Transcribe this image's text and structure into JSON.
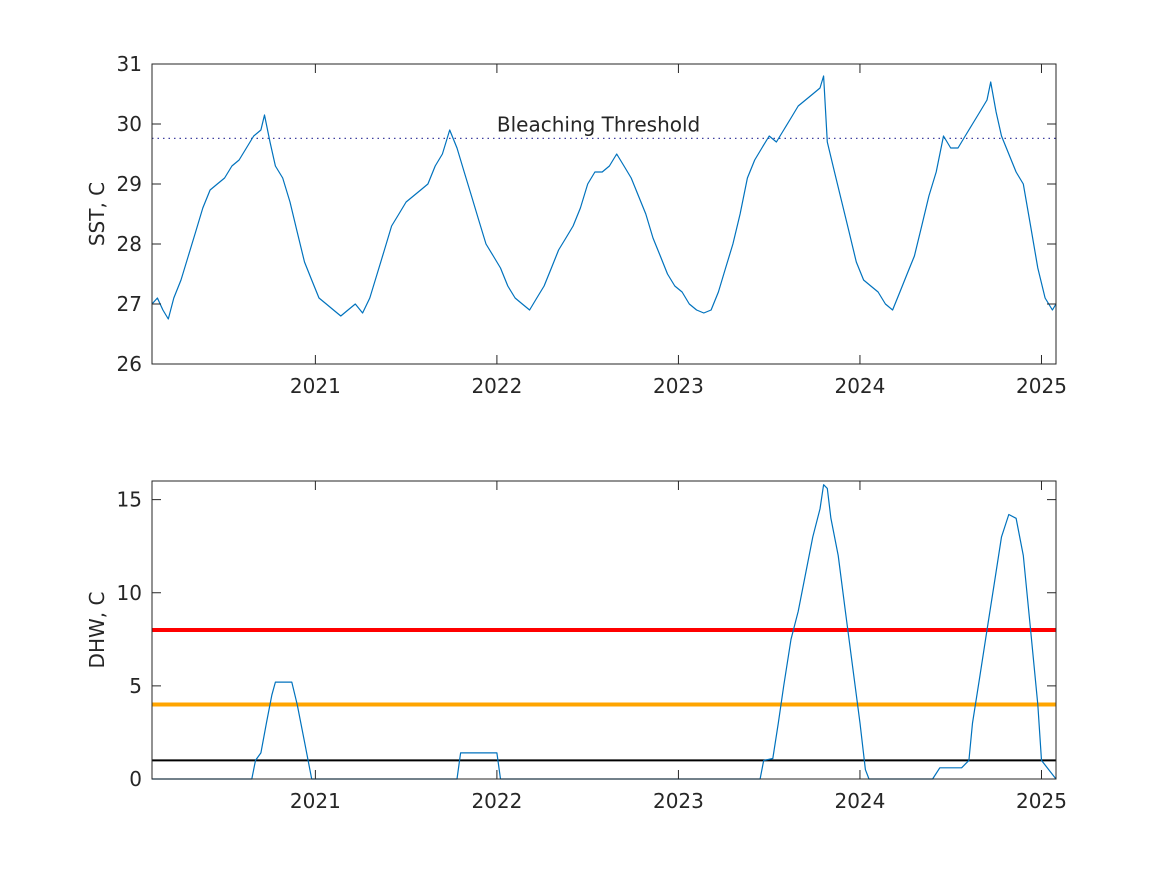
{
  "chart_data": [
    {
      "type": "line",
      "title": "",
      "xlabel": "",
      "ylabel": "SST, C",
      "xlim": [
        2020.1,
        2025.08
      ],
      "ylim": [
        26,
        31
      ],
      "xticks": [
        2021,
        2022,
        2023,
        2024,
        2025
      ],
      "xtick_labels": [
        "2021",
        "2022",
        "2023",
        "2024",
        "2025"
      ],
      "yticks": [
        26,
        27,
        28,
        29,
        30,
        31
      ],
      "ytick_labels": [
        "26",
        "27",
        "28",
        "29",
        "30",
        "31"
      ],
      "grid": false,
      "threshold": {
        "value": 29.76,
        "label": "Bleaching Threshold",
        "label_x": 2022.0,
        "color": "#4040a0",
        "style": "dotted"
      },
      "series": [
        {
          "color": "#0072bd",
          "x": [
            2020.1,
            2020.13,
            2020.16,
            2020.19,
            2020.22,
            2020.26,
            2020.3,
            2020.34,
            2020.38,
            2020.42,
            2020.46,
            2020.5,
            2020.54,
            2020.58,
            2020.62,
            2020.66,
            2020.7,
            2020.72,
            2020.75,
            2020.78,
            2020.82,
            2020.86,
            2020.9,
            2020.94,
            2020.98,
            2021.02,
            2021.06,
            2021.1,
            2021.14,
            2021.18,
            2021.22,
            2021.26,
            2021.3,
            2021.34,
            2021.38,
            2021.42,
            2021.46,
            2021.5,
            2021.54,
            2021.58,
            2021.62,
            2021.66,
            2021.7,
            2021.74,
            2021.78,
            2021.82,
            2021.86,
            2021.9,
            2021.94,
            2021.98,
            2022.02,
            2022.06,
            2022.1,
            2022.14,
            2022.18,
            2022.22,
            2022.26,
            2022.3,
            2022.34,
            2022.38,
            2022.42,
            2022.46,
            2022.5,
            2022.54,
            2022.58,
            2022.62,
            2022.66,
            2022.7,
            2022.74,
            2022.78,
            2022.82,
            2022.86,
            2022.9,
            2022.94,
            2022.98,
            2023.02,
            2023.06,
            2023.1,
            2023.14,
            2023.18,
            2023.22,
            2023.26,
            2023.3,
            2023.34,
            2023.38,
            2023.42,
            2023.46,
            2023.5,
            2023.54,
            2023.58,
            2023.62,
            2023.66,
            2023.7,
            2023.74,
            2023.78,
            2023.8,
            2023.82,
            2023.86,
            2023.9,
            2023.94,
            2023.98,
            2024.02,
            2024.06,
            2024.1,
            2024.14,
            2024.18,
            2024.22,
            2024.26,
            2024.3,
            2024.34,
            2024.38,
            2024.42,
            2024.46,
            2024.5,
            2024.54,
            2024.58,
            2024.62,
            2024.66,
            2024.7,
            2024.72,
            2024.75,
            2024.78,
            2024.82,
            2024.86,
            2024.9,
            2024.94,
            2024.98,
            2025.02,
            2025.06,
            2025.08
          ],
          "y": [
            27.0,
            27.1,
            26.9,
            26.75,
            27.1,
            27.4,
            27.8,
            28.2,
            28.6,
            28.9,
            29.0,
            29.1,
            29.3,
            29.4,
            29.6,
            29.8,
            29.9,
            30.15,
            29.7,
            29.3,
            29.1,
            28.7,
            28.2,
            27.7,
            27.4,
            27.1,
            27.0,
            26.9,
            26.8,
            26.9,
            27.0,
            26.85,
            27.1,
            27.5,
            27.9,
            28.3,
            28.5,
            28.7,
            28.8,
            28.9,
            29.0,
            29.3,
            29.5,
            29.9,
            29.6,
            29.2,
            28.8,
            28.4,
            28.0,
            27.8,
            27.6,
            27.3,
            27.1,
            27.0,
            26.9,
            27.1,
            27.3,
            27.6,
            27.9,
            28.1,
            28.3,
            28.6,
            29.0,
            29.2,
            29.2,
            29.3,
            29.5,
            29.3,
            29.1,
            28.8,
            28.5,
            28.1,
            27.8,
            27.5,
            27.3,
            27.2,
            27.0,
            26.9,
            26.85,
            26.9,
            27.2,
            27.6,
            28.0,
            28.5,
            29.1,
            29.4,
            29.6,
            29.8,
            29.7,
            29.9,
            30.1,
            30.3,
            30.4,
            30.5,
            30.6,
            30.8,
            29.7,
            29.2,
            28.7,
            28.2,
            27.7,
            27.4,
            27.3,
            27.2,
            27.0,
            26.9,
            27.2,
            27.5,
            27.8,
            28.3,
            28.8,
            29.2,
            29.8,
            29.6,
            29.6,
            29.8,
            30.0,
            30.2,
            30.4,
            30.7,
            30.2,
            29.8,
            29.5,
            29.2,
            29.0,
            28.3,
            27.6,
            27.1,
            26.9,
            27.0
          ]
        }
      ]
    },
    {
      "type": "line",
      "title": "",
      "xlabel": "",
      "ylabel": "DHW, C",
      "xlim": [
        2020.1,
        2025.08
      ],
      "ylim": [
        0,
        16
      ],
      "xticks": [
        2021,
        2022,
        2023,
        2024,
        2025
      ],
      "xtick_labels": [
        "2021",
        "2022",
        "2023",
        "2024",
        "2025"
      ],
      "yticks": [
        0,
        5,
        10,
        15
      ],
      "ytick_labels": [
        "0",
        "5",
        "10",
        "15"
      ],
      "grid": false,
      "reference_lines": [
        {
          "value": 8,
          "color": "#ff0000",
          "width": 4
        },
        {
          "value": 4,
          "color": "#ffa500",
          "width": 4
        },
        {
          "value": 1,
          "color": "#000000",
          "width": 2
        }
      ],
      "series": [
        {
          "color": "#0072bd",
          "x": [
            2020.1,
            2020.65,
            2020.67,
            2020.7,
            2020.73,
            2020.76,
            2020.78,
            2020.8,
            2020.87,
            2020.9,
            2020.94,
            2020.98,
            2021.1,
            2021.2,
            2021.5,
            2021.78,
            2021.8,
            2022.0,
            2022.02,
            2022.5,
            2023.0,
            2023.45,
            2023.47,
            2023.52,
            2023.55,
            2023.58,
            2023.62,
            2023.66,
            2023.7,
            2023.74,
            2023.78,
            2023.8,
            2023.82,
            2023.84,
            2023.88,
            2023.92,
            2023.96,
            2024.0,
            2024.03,
            2024.05,
            2024.4,
            2024.44,
            2024.56,
            2024.6,
            2024.62,
            2024.66,
            2024.7,
            2024.74,
            2024.78,
            2024.82,
            2024.86,
            2024.9,
            2024.94,
            2024.98,
            2025.0,
            2025.08
          ],
          "y": [
            0,
            0,
            1.0,
            1.4,
            3.0,
            4.5,
            5.2,
            5.2,
            5.2,
            4.0,
            2.0,
            0,
            0,
            0,
            0,
            0,
            1.4,
            1.4,
            0,
            0,
            0,
            0,
            1.0,
            1.1,
            3.0,
            5.0,
            7.5,
            9.0,
            11.0,
            13.0,
            14.5,
            15.8,
            15.6,
            14.0,
            12.0,
            9.0,
            6.0,
            3.0,
            0.5,
            0,
            0,
            0.6,
            0.6,
            1.0,
            3.0,
            5.5,
            8.0,
            10.5,
            13.0,
            14.2,
            14.0,
            12.0,
            8.0,
            4.0,
            1.0,
            0
          ]
        }
      ]
    }
  ]
}
